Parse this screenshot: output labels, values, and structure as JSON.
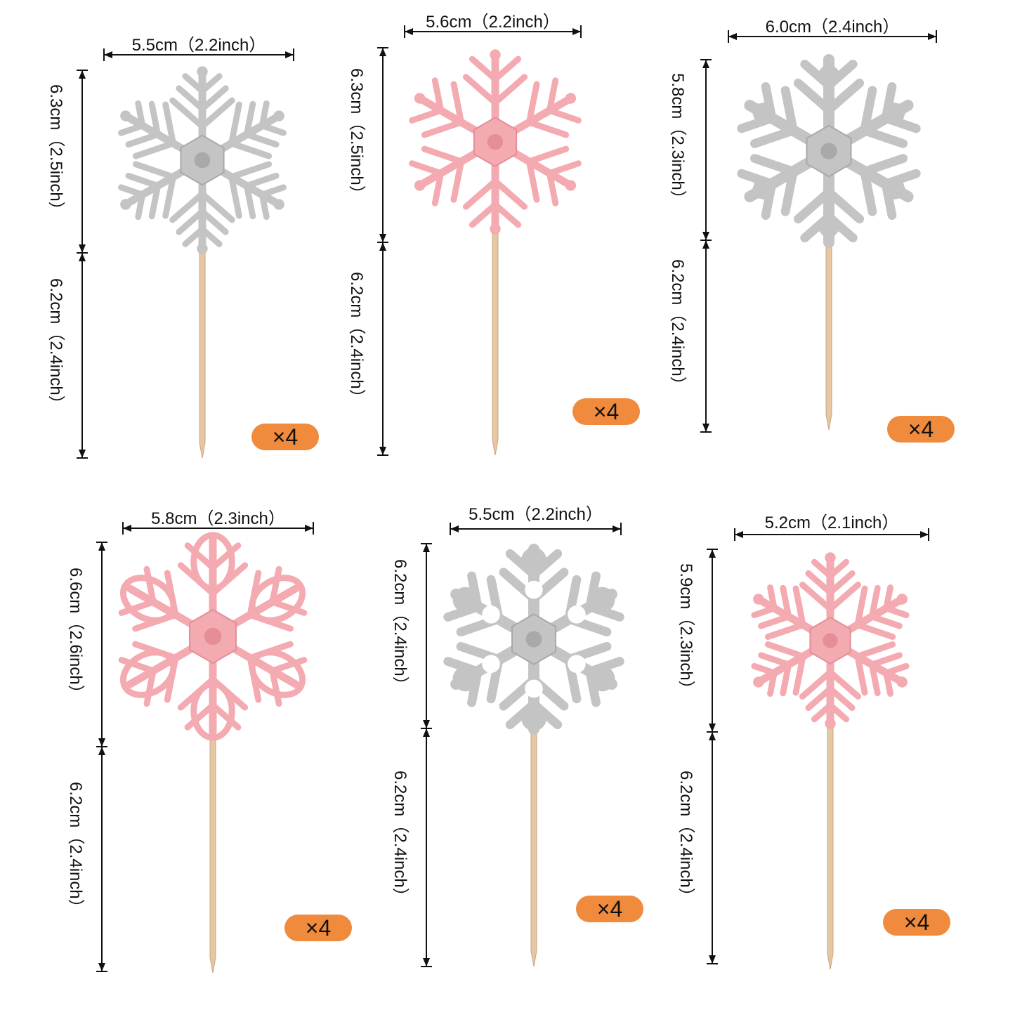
{
  "colors": {
    "silver": "#c4c4c4",
    "silver_dark": "#a9a9a9",
    "pink": "#f3aab1",
    "pink_dark": "#e58e98",
    "stick": "#e6c7a4",
    "badge": "#f08a3c"
  },
  "toppers": [
    {
      "id": "t1",
      "color": "silver",
      "width_label": "5.5cm（2.2inch）",
      "height_label": "6.3cm（2.5inch）",
      "stick_label": "6.2cm（2.4inch）",
      "count_label": "×4"
    },
    {
      "id": "t2",
      "color": "pink",
      "width_label": "5.6cm（2.2inch）",
      "height_label": "6.3cm（2.5inch）",
      "stick_label": "6.2cm（2.4inch）",
      "count_label": "×4"
    },
    {
      "id": "t3",
      "color": "silver",
      "width_label": "6.0cm（2.4inch）",
      "height_label": "5.8cm（2.3inch）",
      "stick_label": "6.2cm（2.4inch）",
      "count_label": "×4"
    },
    {
      "id": "t4",
      "color": "pink",
      "width_label": "5.8cm（2.3inch）",
      "height_label": "6.6cm（2.6inch）",
      "stick_label": "6.2cm（2.4inch）",
      "count_label": "×4"
    },
    {
      "id": "t5",
      "color": "silver",
      "width_label": "5.5cm（2.2inch）",
      "height_label": "6.2cm（2.4inch）",
      "stick_label": "6.2cm（2.4inch）",
      "count_label": "×4"
    },
    {
      "id": "t6",
      "color": "pink",
      "width_label": "5.2cm（2.1inch）",
      "height_label": "5.9cm（2.3inch）",
      "stick_label": "6.2cm（2.4inch）",
      "count_label": "×4"
    }
  ]
}
